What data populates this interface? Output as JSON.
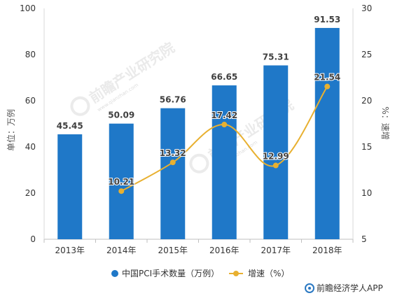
{
  "chart_data": {
    "type": "bar",
    "categories": [
      "2013年",
      "2014年",
      "2015年",
      "2016年",
      "2017年",
      "2018年"
    ],
    "series": [
      {
        "name": "中国PCI手术数量（万例）",
        "type": "bar",
        "axis": "left",
        "color": "#1f78c8",
        "values": [
          45.45,
          50.09,
          56.76,
          66.65,
          75.31,
          91.53
        ],
        "labels": [
          "45.45",
          "50.09",
          "56.76",
          "66.65",
          "75.31",
          "91.53"
        ]
      },
      {
        "name": "增速（%）",
        "type": "line",
        "axis": "right",
        "color": "#e8b030",
        "values": [
          null,
          10.21,
          13.32,
          17.42,
          12.99,
          21.54
        ],
        "labels": [
          "",
          "10.21",
          "13.32",
          "17.42",
          "12.99",
          "21.54"
        ]
      }
    ],
    "ylabel": "单位：万例",
    "y2label": "%：速增",
    "ylim": [
      0,
      100
    ],
    "y2lim": [
      5,
      30
    ],
    "yticks": [
      "0",
      "20",
      "40",
      "60",
      "80",
      "100"
    ],
    "y2ticks": [
      "5",
      "10",
      "15",
      "20",
      "25",
      "30"
    ],
    "grid": false,
    "legend_position": "bottom"
  },
  "watermark": {
    "text": "前瞻产业研究院",
    "sub": "www.qianzhan.com"
  },
  "brand": {
    "text": "前瞻经济学人APP",
    "icon": "qianzhan-logo-icon"
  }
}
